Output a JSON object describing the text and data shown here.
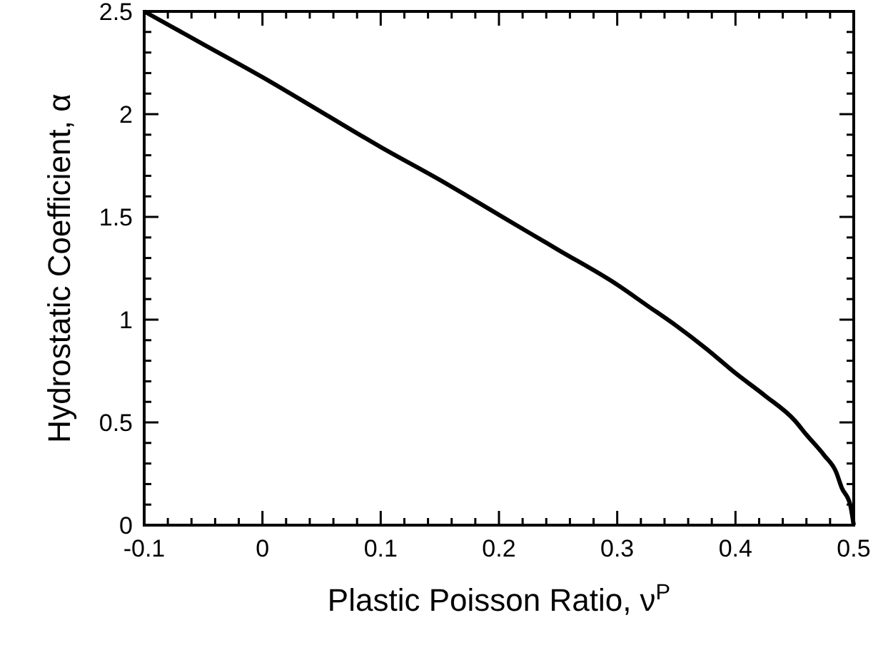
{
  "chart_data": {
    "type": "line",
    "xlabel": "Plastic Poisson Ratio,  ν$^{P}$",
    "ylabel": "Hydrostatic Coefficient,  α",
    "x": [
      -0.1,
      -0.05,
      0,
      0.05,
      0.1,
      0.15,
      0.2,
      0.25,
      0.3,
      0.325,
      0.35,
      0.375,
      0.4,
      0.425,
      0.45,
      0.46,
      0.475,
      0.485,
      0.49,
      0.497,
      0.5
    ],
    "series": [
      {
        "color": "#000000",
        "values": [
          2.5,
          2.34,
          2.18,
          2.01,
          1.84,
          1.68,
          1.51,
          1.34,
          1.17,
          1.07,
          0.97,
          0.86,
          0.74,
          0.63,
          0.51,
          0.44,
          0.34,
          0.26,
          0.18,
          0.1,
          0
        ]
      }
    ],
    "xlim": [
      -0.1,
      0.5
    ],
    "ylim": [
      0,
      2.5
    ],
    "xticks": [
      -0.1,
      {
        "value": -0.08,
        "label": null
      },
      {
        "value": -0.06,
        "label": null
      },
      {
        "value": -0.04,
        "label": null
      },
      {
        "value": -0.02,
        "label": null
      },
      0,
      {
        "value": 0.02,
        "label": null
      },
      {
        "value": 0.04,
        "label": null
      },
      {
        "value": 0.06,
        "label": null
      },
      {
        "value": 0.08,
        "label": null
      },
      0.1,
      {
        "value": 0.12,
        "label": null
      },
      {
        "value": 0.14,
        "label": null
      },
      {
        "value": 0.16,
        "label": null
      },
      {
        "value": 0.18,
        "label": null
      },
      0.2,
      {
        "value": 0.22,
        "label": null
      },
      {
        "value": 0.24,
        "label": null
      },
      {
        "value": 0.26,
        "label": null
      },
      {
        "value": 0.28,
        "label": null
      },
      0.3,
      {
        "value": 0.32,
        "label": null
      },
      {
        "value": 0.34,
        "label": null
      },
      {
        "value": 0.36,
        "label": null
      },
      {
        "value": 0.38,
        "label": null
      },
      0.4,
      {
        "value": 0.42,
        "label": null
      },
      {
        "value": 0.44,
        "label": null
      },
      {
        "value": 0.46,
        "label": null
      },
      {
        "value": 0.48,
        "label": null
      },
      0.5
    ],
    "yticks": [
      0,
      {
        "value": 0.1,
        "label": null
      },
      {
        "value": 0.2,
        "label": null
      },
      {
        "value": 0.3,
        "label": null
      },
      {
        "value": 0.4,
        "label": null
      },
      0.5,
      {
        "value": 0.6,
        "label": null
      },
      {
        "value": 0.7,
        "label": null
      },
      {
        "value": 0.8,
        "label": null
      },
      {
        "value": 0.9,
        "label": null
      },
      1,
      {
        "value": 1.1,
        "label": null
      },
      {
        "value": 1.2,
        "label": null
      },
      {
        "value": 1.3,
        "label": null
      },
      {
        "value": 1.4,
        "label": null
      },
      1.5,
      {
        "value": 1.6,
        "label": null
      },
      {
        "value": 1.7,
        "label": null
      },
      {
        "value": 1.8,
        "label": null
      },
      {
        "value": 1.9,
        "label": null
      },
      2,
      {
        "value": 2.1,
        "label": null
      },
      {
        "value": 2.2,
        "label": null
      },
      {
        "value": 2.3,
        "label": null
      },
      {
        "value": 2.4,
        "label": null
      },
      2.5
    ],
    "line_style": "solid",
    "marker": "none"
  }
}
